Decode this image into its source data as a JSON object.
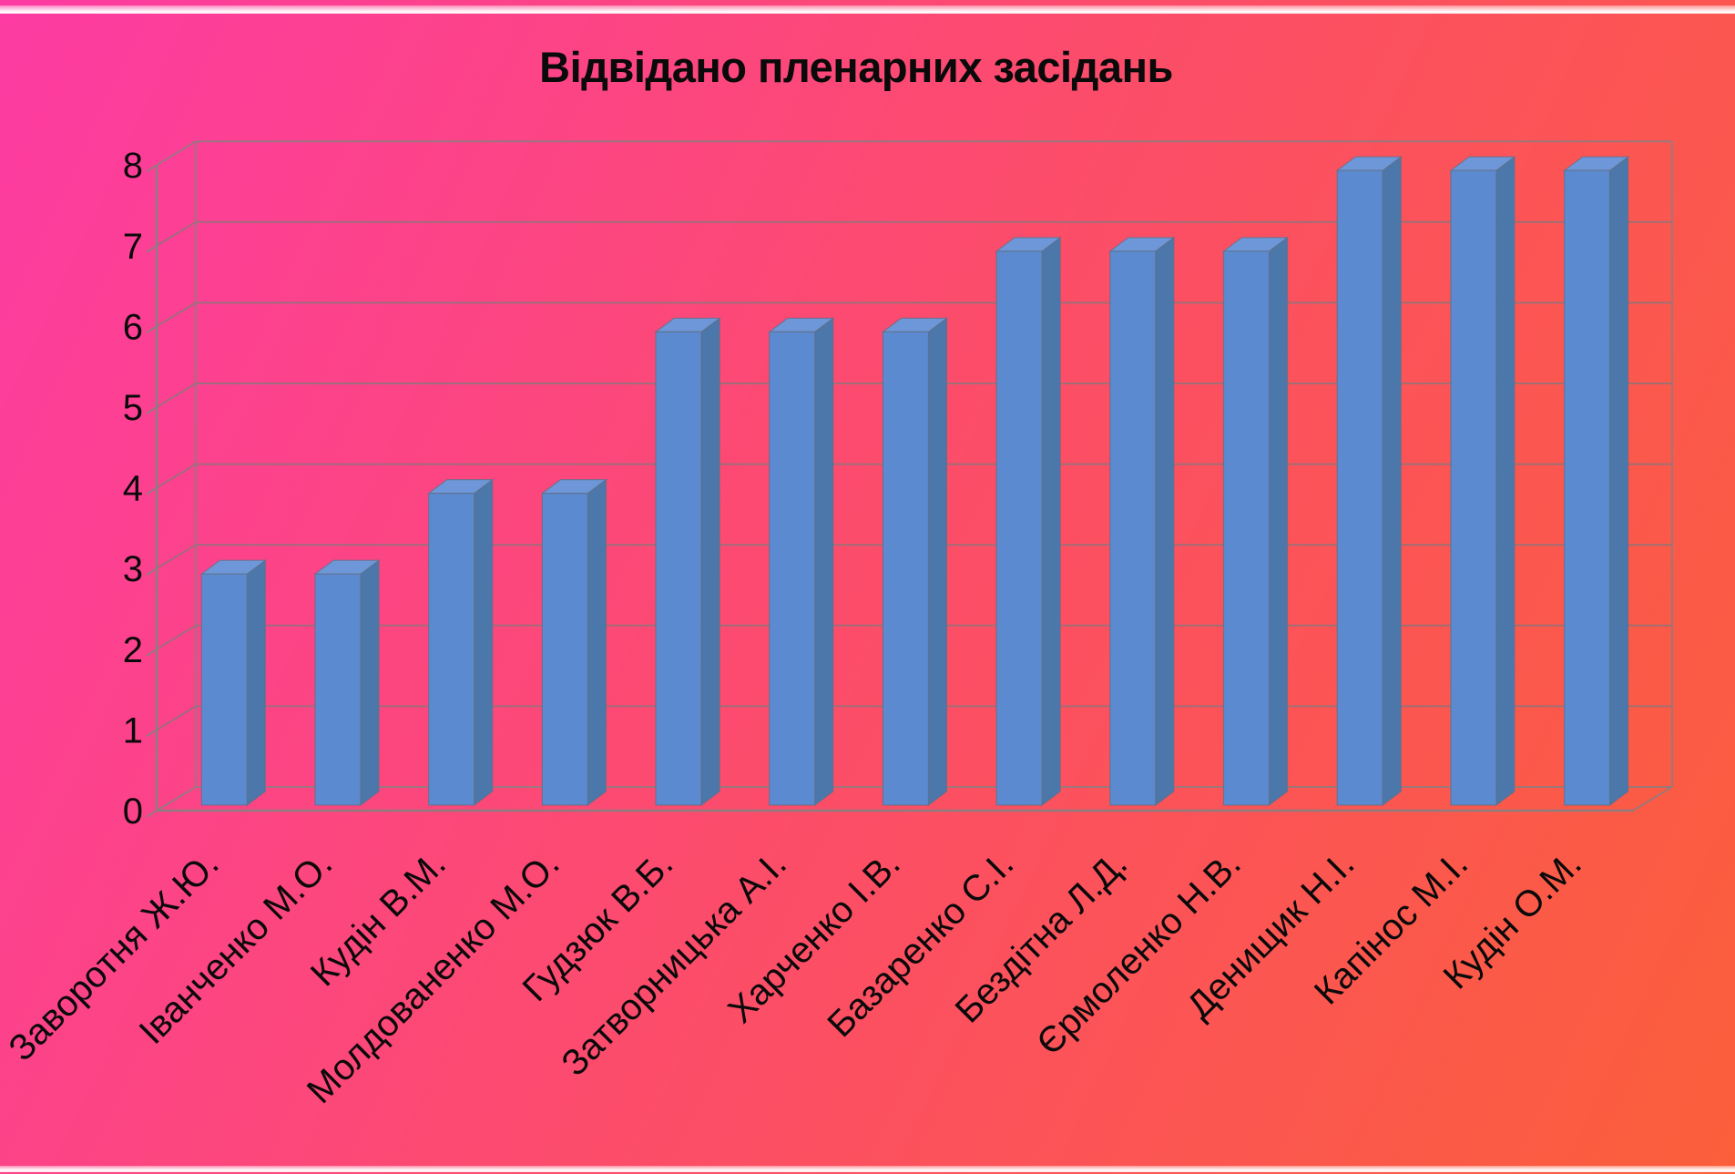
{
  "title": "Відвідано пленарних засідань",
  "chart_data": {
    "type": "bar",
    "style": "3d-column",
    "title": "Відвідано пленарних засідань",
    "categories": [
      "Заворотня Ж.Ю.",
      "Іванченко М.О.",
      "Кудін В.М.",
      "Молдованенко М.О.",
      "Гудзюк В.Б.",
      "Затворницька А.І.",
      "Харченко І.В.",
      "Базаренко С.І.",
      "Бездітна Л.Д.",
      "Єрмоленко Н.В.",
      "Денищик Н.І.",
      "Капінос М.І.",
      "Кудін О.М."
    ],
    "values": [
      3,
      3,
      4,
      4,
      6,
      6,
      6,
      7,
      7,
      7,
      8,
      8,
      8
    ],
    "xlabel": "",
    "ylabel": "",
    "ylim": [
      0,
      8
    ],
    "yticks": [
      0,
      1,
      2,
      3,
      4,
      5,
      6,
      7,
      8
    ],
    "grid": true,
    "legend_position": "none"
  },
  "colors": {
    "background_top_left": "#fd3ba3",
    "background_bottom_right": "#fb5f3a",
    "bar_front": "#5b8ad0",
    "bar_top": "#6d97d8",
    "bar_side": "#4b77ab",
    "bar_outline": "#5f6f85",
    "gridline": "#8a767c",
    "frame": "#897e80",
    "text": "#0a0a0a",
    "edge_stripe": "#ffffff"
  }
}
